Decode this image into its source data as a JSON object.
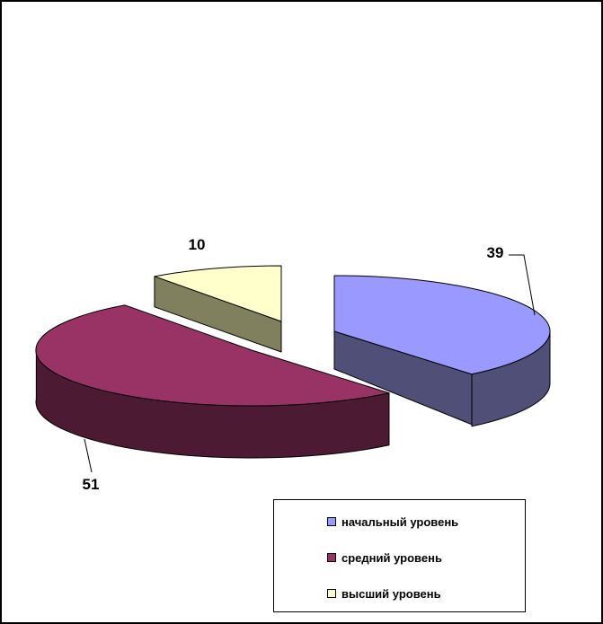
{
  "chart_data": {
    "type": "pie",
    "effect": "3d-exploded",
    "start_angle_deg": 0,
    "direction": "clockwise",
    "labels": [
      "начальный уровень",
      "средний уровень",
      "высший уровень"
    ],
    "values": [
      39,
      51,
      10
    ],
    "colors": [
      "#9999FF",
      "#993366",
      "#FFFFCC"
    ],
    "side_colors": [
      "#4F4F78",
      "#4D1A33",
      "#80805E"
    ],
    "outline_color": "#000000",
    "background_color": "#FFFFFF",
    "legend_position": "bottom-right",
    "legend_border": true,
    "data_labels_shown": true
  }
}
